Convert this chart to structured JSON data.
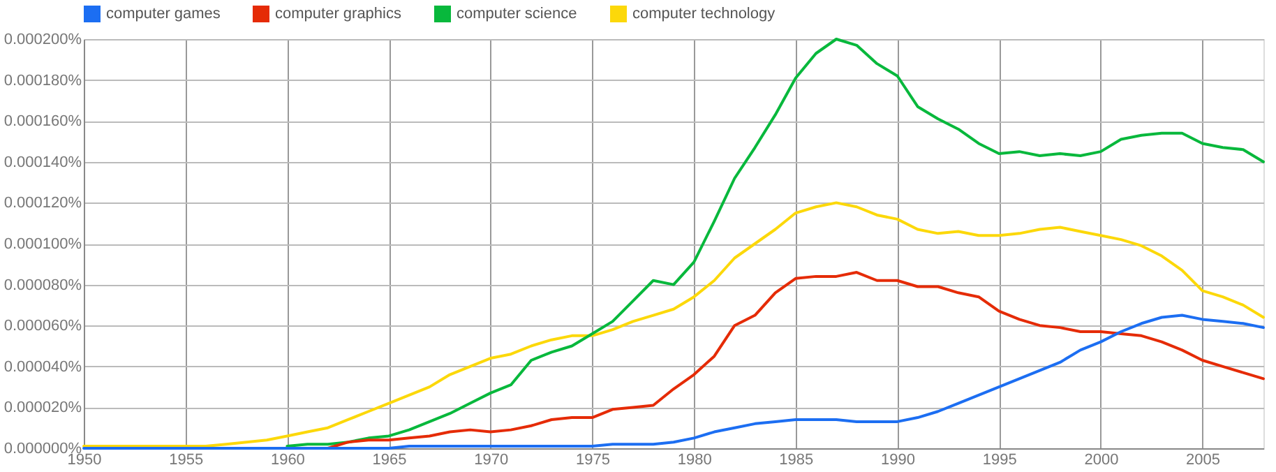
{
  "chart_data": {
    "type": "line",
    "legend": "top",
    "grid": true,
    "line_style": "solid",
    "x": [
      1950,
      1951,
      1952,
      1953,
      1954,
      1955,
      1956,
      1957,
      1958,
      1959,
      1960,
      1961,
      1962,
      1963,
      1964,
      1965,
      1966,
      1967,
      1968,
      1969,
      1970,
      1971,
      1972,
      1973,
      1974,
      1975,
      1976,
      1977,
      1978,
      1979,
      1980,
      1981,
      1982,
      1983,
      1984,
      1985,
      1986,
      1987,
      1988,
      1989,
      1990,
      1991,
      1992,
      1993,
      1994,
      1995,
      1996,
      1997,
      1998,
      1999,
      2000,
      2001,
      2002,
      2003,
      2004,
      2005,
      2006,
      2007,
      2008
    ],
    "xlim": [
      1950,
      2008
    ],
    "xticks": [
      1950,
      1955,
      1960,
      1965,
      1970,
      1975,
      1980,
      1985,
      1990,
      1995,
      2000,
      2005
    ],
    "ylim": [
      0,
      0.0002
    ],
    "yticks": [
      {
        "value": 0,
        "label": "0.000000%"
      },
      {
        "value": 2e-05,
        "label": "0.000020%"
      },
      {
        "value": 4e-05,
        "label": "0.000040%"
      },
      {
        "value": 6e-05,
        "label": "0.000060%"
      },
      {
        "value": 8e-05,
        "label": "0.000080%"
      },
      {
        "value": 0.0001,
        "label": "0.000100%"
      },
      {
        "value": 0.00012,
        "label": "0.000120%"
      },
      {
        "value": 0.00014,
        "label": "0.000140%"
      },
      {
        "value": 0.00016,
        "label": "0.000160%"
      },
      {
        "value": 0.00018,
        "label": "0.000180%"
      },
      {
        "value": 0.0002,
        "label": "0.000200%"
      }
    ],
    "series": [
      {
        "name": "computer games",
        "color": "#1c6ef2",
        "values": [
          0,
          0,
          0,
          0,
          0,
          0,
          0,
          0,
          0,
          0,
          0,
          0,
          0,
          0,
          0,
          0,
          1e-06,
          1e-06,
          1e-06,
          1e-06,
          1e-06,
          1e-06,
          1e-06,
          1e-06,
          1e-06,
          1e-06,
          2e-06,
          2e-06,
          2e-06,
          3e-06,
          5e-06,
          8e-06,
          1e-05,
          1.2e-05,
          1.3e-05,
          1.4e-05,
          1.4e-05,
          1.4e-05,
          1.3e-05,
          1.3e-05,
          1.3e-05,
          1.5e-05,
          1.8e-05,
          2.2e-05,
          2.6e-05,
          3e-05,
          3.4e-05,
          3.8e-05,
          4.2e-05,
          4.8e-05,
          5.2e-05,
          5.7e-05,
          6.1e-05,
          6.4e-05,
          6.5e-05,
          6.3e-05,
          6.2e-05,
          6.1e-05,
          5.9e-05
        ]
      },
      {
        "name": "computer graphics",
        "color": "#e52b06",
        "values": [
          null,
          null,
          null,
          null,
          null,
          null,
          null,
          null,
          null,
          null,
          null,
          null,
          0,
          3e-06,
          4e-06,
          4e-06,
          5e-06,
          6e-06,
          8e-06,
          9e-06,
          8e-06,
          9e-06,
          1.1e-05,
          1.4e-05,
          1.5e-05,
          1.5e-05,
          1.9e-05,
          2e-05,
          2.1e-05,
          2.9e-05,
          3.6e-05,
          4.5e-05,
          6e-05,
          6.5e-05,
          7.6e-05,
          8.3e-05,
          8.4e-05,
          8.4e-05,
          8.6e-05,
          8.2e-05,
          8.2e-05,
          7.9e-05,
          7.9e-05,
          7.6e-05,
          7.4e-05,
          6.7e-05,
          6.3e-05,
          6e-05,
          5.9e-05,
          5.7e-05,
          5.7e-05,
          5.6e-05,
          5.5e-05,
          5.2e-05,
          4.8e-05,
          4.3e-05,
          4e-05,
          3.7e-05,
          3.4e-05
        ]
      },
      {
        "name": "computer science",
        "color": "#08b83c",
        "values": [
          null,
          null,
          null,
          null,
          null,
          null,
          null,
          null,
          null,
          null,
          1e-06,
          2e-06,
          2e-06,
          3e-06,
          5e-06,
          6e-06,
          9e-06,
          1.3e-05,
          1.7e-05,
          2.2e-05,
          2.7e-05,
          3.1e-05,
          4.3e-05,
          4.7e-05,
          5e-05,
          5.6e-05,
          6.2e-05,
          7.2e-05,
          8.2e-05,
          8e-05,
          9.1e-05,
          0.000111,
          0.000132,
          0.000147,
          0.000163,
          0.000181,
          0.000193,
          0.0002,
          0.000197,
          0.000188,
          0.000182,
          0.000167,
          0.000161,
          0.000156,
          0.000149,
          0.000144,
          0.000145,
          0.000143,
          0.000144,
          0.000143,
          0.000145,
          0.000151,
          0.000153,
          0.000154,
          0.000154,
          0.000149,
          0.000147,
          0.000146,
          0.00014
        ]
      },
      {
        "name": "computer technology",
        "color": "#fcd80a",
        "values": [
          1e-06,
          1e-06,
          1e-06,
          1e-06,
          1e-06,
          1e-06,
          1e-06,
          2e-06,
          3e-06,
          4e-06,
          6e-06,
          8e-06,
          1e-05,
          1.4e-05,
          1.8e-05,
          2.2e-05,
          2.6e-05,
          3e-05,
          3.6e-05,
          4e-05,
          4.4e-05,
          4.6e-05,
          5e-05,
          5.3e-05,
          5.5e-05,
          5.5e-05,
          5.8e-05,
          6.2e-05,
          6.5e-05,
          6.8e-05,
          7.4e-05,
          8.2e-05,
          9.3e-05,
          0.0001,
          0.000107,
          0.000115,
          0.000118,
          0.00012,
          0.000118,
          0.000114,
          0.000112,
          0.000107,
          0.000105,
          0.000106,
          0.000104,
          0.000104,
          0.000105,
          0.000107,
          0.000108,
          0.000106,
          0.000104,
          0.000102,
          9.9e-05,
          9.4e-05,
          8.7e-05,
          7.7e-05,
          7.4e-05,
          7e-05,
          6.4e-05
        ]
      }
    ]
  }
}
